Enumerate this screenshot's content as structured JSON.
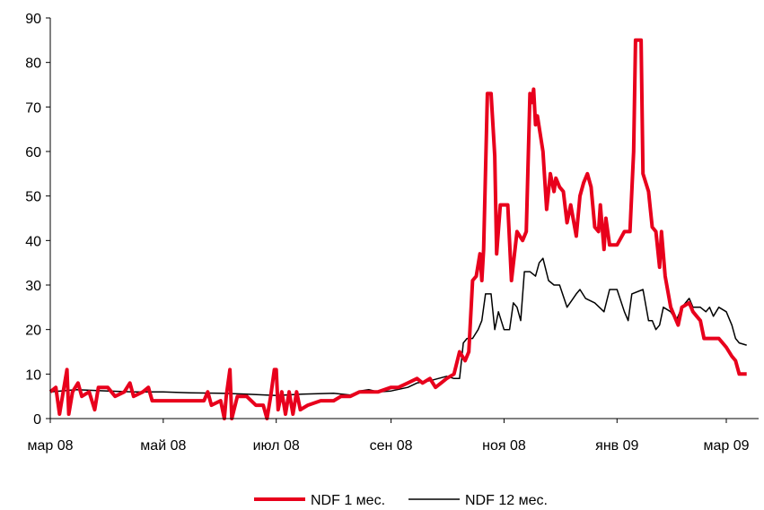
{
  "chart_data": {
    "type": "line",
    "ylim": [
      0,
      90
    ],
    "y_ticks": [
      0,
      10,
      20,
      30,
      40,
      50,
      60,
      70,
      80,
      90
    ],
    "x_ticks": [
      {
        "label": "мар 08",
        "date": "2008-03-01"
      },
      {
        "label": "май 08",
        "date": "2008-05-01"
      },
      {
        "label": "июл 08",
        "date": "2008-07-01"
      },
      {
        "label": "сен 08",
        "date": "2008-09-01"
      },
      {
        "label": "ноя 08",
        "date": "2008-11-01"
      },
      {
        "label": "янв 09",
        "date": "2009-01-01"
      },
      {
        "label": "мар 09",
        "date": "2009-03-01"
      }
    ],
    "xlim": [
      "2008-03-01",
      "2009-03-20"
    ],
    "grid": false,
    "legend_position": "bottom",
    "series": [
      {
        "name": "NDF 1 мес.",
        "color": "#e8001c",
        "points": [
          [
            "2008-03-01",
            6
          ],
          [
            "2008-03-04",
            7
          ],
          [
            "2008-03-06",
            1
          ],
          [
            "2008-03-08",
            6
          ],
          [
            "2008-03-10",
            11
          ],
          [
            "2008-03-11",
            1
          ],
          [
            "2008-03-13",
            6
          ],
          [
            "2008-03-16",
            8
          ],
          [
            "2008-03-18",
            5
          ],
          [
            "2008-03-22",
            6
          ],
          [
            "2008-03-25",
            2
          ],
          [
            "2008-03-27",
            7
          ],
          [
            "2008-04-01",
            7
          ],
          [
            "2008-04-05",
            5
          ],
          [
            "2008-04-10",
            6
          ],
          [
            "2008-04-13",
            8
          ],
          [
            "2008-04-15",
            5
          ],
          [
            "2008-04-20",
            6
          ],
          [
            "2008-04-23",
            7
          ],
          [
            "2008-04-25",
            4
          ],
          [
            "2008-05-01",
            4
          ],
          [
            "2008-05-10",
            4
          ],
          [
            "2008-05-15",
            4
          ],
          [
            "2008-05-20",
            4
          ],
          [
            "2008-05-23",
            4
          ],
          [
            "2008-05-25",
            6
          ],
          [
            "2008-05-27",
            3
          ],
          [
            "2008-06-01",
            4
          ],
          [
            "2008-06-03",
            0
          ],
          [
            "2008-06-04",
            5
          ],
          [
            "2008-06-06",
            11
          ],
          [
            "2008-06-07",
            0
          ],
          [
            "2008-06-10",
            5
          ],
          [
            "2008-06-15",
            5
          ],
          [
            "2008-06-20",
            3
          ],
          [
            "2008-06-24",
            3
          ],
          [
            "2008-06-26",
            0
          ],
          [
            "2008-06-28",
            5
          ],
          [
            "2008-06-30",
            11
          ],
          [
            "2008-07-01",
            11
          ],
          [
            "2008-07-02",
            2
          ],
          [
            "2008-07-04",
            6
          ],
          [
            "2008-07-06",
            1
          ],
          [
            "2008-07-08",
            6
          ],
          [
            "2008-07-10",
            1
          ],
          [
            "2008-07-12",
            6
          ],
          [
            "2008-07-14",
            2
          ],
          [
            "2008-07-18",
            3
          ],
          [
            "2008-07-25",
            4
          ],
          [
            "2008-08-01",
            4
          ],
          [
            "2008-08-05",
            5
          ],
          [
            "2008-08-10",
            5
          ],
          [
            "2008-08-15",
            6
          ],
          [
            "2008-08-20",
            6
          ],
          [
            "2008-08-25",
            6
          ],
          [
            "2008-09-01",
            7
          ],
          [
            "2008-09-05",
            7
          ],
          [
            "2008-09-10",
            8
          ],
          [
            "2008-09-15",
            9
          ],
          [
            "2008-09-18",
            8
          ],
          [
            "2008-09-22",
            9
          ],
          [
            "2008-09-25",
            7
          ],
          [
            "2008-09-28",
            8
          ],
          [
            "2008-10-01",
            9
          ],
          [
            "2008-10-05",
            10
          ],
          [
            "2008-10-08",
            15
          ],
          [
            "2008-10-11",
            13
          ],
          [
            "2008-10-13",
            15
          ],
          [
            "2008-10-15",
            31
          ],
          [
            "2008-10-17",
            32
          ],
          [
            "2008-10-19",
            37
          ],
          [
            "2008-10-20",
            31
          ],
          [
            "2008-10-21",
            38
          ],
          [
            "2008-10-23",
            73
          ],
          [
            "2008-10-25",
            73
          ],
          [
            "2008-10-27",
            59
          ],
          [
            "2008-10-28",
            37
          ],
          [
            "2008-10-30",
            48
          ],
          [
            "2008-11-03",
            48
          ],
          [
            "2008-11-05",
            31
          ],
          [
            "2008-11-08",
            42
          ],
          [
            "2008-11-11",
            40
          ],
          [
            "2008-11-13",
            42
          ],
          [
            "2008-11-15",
            73
          ],
          [
            "2008-11-16",
            71
          ],
          [
            "2008-11-17",
            74
          ],
          [
            "2008-11-18",
            66
          ],
          [
            "2008-11-19",
            68
          ],
          [
            "2008-11-22",
            60
          ],
          [
            "2008-11-24",
            47
          ],
          [
            "2008-11-26",
            55
          ],
          [
            "2008-11-28",
            51
          ],
          [
            "2008-11-29",
            54
          ],
          [
            "2008-12-01",
            52
          ],
          [
            "2008-12-03",
            51
          ],
          [
            "2008-12-05",
            44
          ],
          [
            "2008-12-07",
            48
          ],
          [
            "2008-12-10",
            41
          ],
          [
            "2008-12-12",
            50
          ],
          [
            "2008-12-14",
            53
          ],
          [
            "2008-12-16",
            55
          ],
          [
            "2008-12-18",
            52
          ],
          [
            "2008-12-20",
            43
          ],
          [
            "2008-12-22",
            42
          ],
          [
            "2008-12-23",
            48
          ],
          [
            "2008-12-25",
            38
          ],
          [
            "2008-12-26",
            45
          ],
          [
            "2008-12-28",
            39
          ],
          [
            "2009-01-01",
            39
          ],
          [
            "2009-01-05",
            42
          ],
          [
            "2009-01-08",
            42
          ],
          [
            "2009-01-10",
            60
          ],
          [
            "2009-01-11",
            85
          ],
          [
            "2009-01-14",
            85
          ],
          [
            "2009-01-15",
            55
          ],
          [
            "2009-01-18",
            51
          ],
          [
            "2009-01-20",
            43
          ],
          [
            "2009-01-22",
            42
          ],
          [
            "2009-01-24",
            34
          ],
          [
            "2009-01-25",
            42
          ],
          [
            "2009-01-27",
            32
          ],
          [
            "2009-01-30",
            25
          ],
          [
            "2009-02-01",
            23
          ],
          [
            "2009-02-03",
            21
          ],
          [
            "2009-02-05",
            25
          ],
          [
            "2009-02-09",
            26
          ],
          [
            "2009-02-11",
            24
          ],
          [
            "2009-02-13",
            23
          ],
          [
            "2009-02-15",
            22
          ],
          [
            "2009-02-17",
            18
          ],
          [
            "2009-02-20",
            18
          ],
          [
            "2009-02-25",
            18
          ],
          [
            "2009-03-01",
            16
          ],
          [
            "2009-03-04",
            14
          ],
          [
            "2009-03-06",
            13
          ],
          [
            "2009-03-08",
            10
          ],
          [
            "2009-03-12",
            10
          ]
        ]
      },
      {
        "name": "NDF 12 мес.",
        "color": "#000000",
        "points": [
          [
            "2008-03-01",
            6
          ],
          [
            "2008-03-15",
            6.5
          ],
          [
            "2008-04-01",
            6.2
          ],
          [
            "2008-04-15",
            6
          ],
          [
            "2008-05-01",
            6
          ],
          [
            "2008-05-15",
            5.8
          ],
          [
            "2008-06-01",
            5.7
          ],
          [
            "2008-06-15",
            5.5
          ],
          [
            "2008-07-01",
            5.2
          ],
          [
            "2008-07-15",
            5.5
          ],
          [
            "2008-08-01",
            5.7
          ],
          [
            "2008-08-10",
            5.3
          ],
          [
            "2008-08-15",
            6.2
          ],
          [
            "2008-08-20",
            6.5
          ],
          [
            "2008-08-25",
            6
          ],
          [
            "2008-09-01",
            6.2
          ],
          [
            "2008-09-10",
            7
          ],
          [
            "2008-09-15",
            8
          ],
          [
            "2008-09-22",
            8.5
          ],
          [
            "2008-10-01",
            9.5
          ],
          [
            "2008-10-05",
            9
          ],
          [
            "2008-10-08",
            9
          ],
          [
            "2008-10-10",
            17
          ],
          [
            "2008-10-12",
            18
          ],
          [
            "2008-10-15",
            18
          ],
          [
            "2008-10-18",
            20
          ],
          [
            "2008-10-20",
            22
          ],
          [
            "2008-10-22",
            28
          ],
          [
            "2008-10-25",
            28
          ],
          [
            "2008-10-27",
            20
          ],
          [
            "2008-10-29",
            24
          ],
          [
            "2008-11-01",
            20
          ],
          [
            "2008-11-04",
            20
          ],
          [
            "2008-11-06",
            26
          ],
          [
            "2008-11-08",
            25
          ],
          [
            "2008-11-10",
            22
          ],
          [
            "2008-11-12",
            33
          ],
          [
            "2008-11-15",
            33
          ],
          [
            "2008-11-18",
            32
          ],
          [
            "2008-11-20",
            35
          ],
          [
            "2008-11-22",
            36
          ],
          [
            "2008-11-25",
            31
          ],
          [
            "2008-11-28",
            30
          ],
          [
            "2008-12-01",
            30
          ],
          [
            "2008-12-05",
            25
          ],
          [
            "2008-12-10",
            28
          ],
          [
            "2008-12-12",
            29
          ],
          [
            "2008-12-15",
            27
          ],
          [
            "2008-12-20",
            26
          ],
          [
            "2008-12-25",
            24
          ],
          [
            "2008-12-28",
            29
          ],
          [
            "2009-01-01",
            29
          ],
          [
            "2009-01-05",
            24
          ],
          [
            "2009-01-07",
            22
          ],
          [
            "2009-01-09",
            28
          ],
          [
            "2009-01-15",
            29
          ],
          [
            "2009-01-18",
            22
          ],
          [
            "2009-01-20",
            22
          ],
          [
            "2009-01-22",
            20
          ],
          [
            "2009-01-24",
            21
          ],
          [
            "2009-01-26",
            25
          ],
          [
            "2009-01-30",
            24
          ],
          [
            "2009-02-02",
            22
          ],
          [
            "2009-02-05",
            25
          ],
          [
            "2009-02-07",
            26
          ],
          [
            "2009-02-09",
            27
          ],
          [
            "2009-02-11",
            25
          ],
          [
            "2009-02-15",
            25
          ],
          [
            "2009-02-18",
            24
          ],
          [
            "2009-02-20",
            25
          ],
          [
            "2009-02-22",
            23
          ],
          [
            "2009-02-25",
            25
          ],
          [
            "2009-03-01",
            24
          ],
          [
            "2009-03-04",
            21
          ],
          [
            "2009-03-06",
            18
          ],
          [
            "2009-03-08",
            17
          ],
          [
            "2009-03-12",
            16.5
          ]
        ]
      }
    ]
  }
}
